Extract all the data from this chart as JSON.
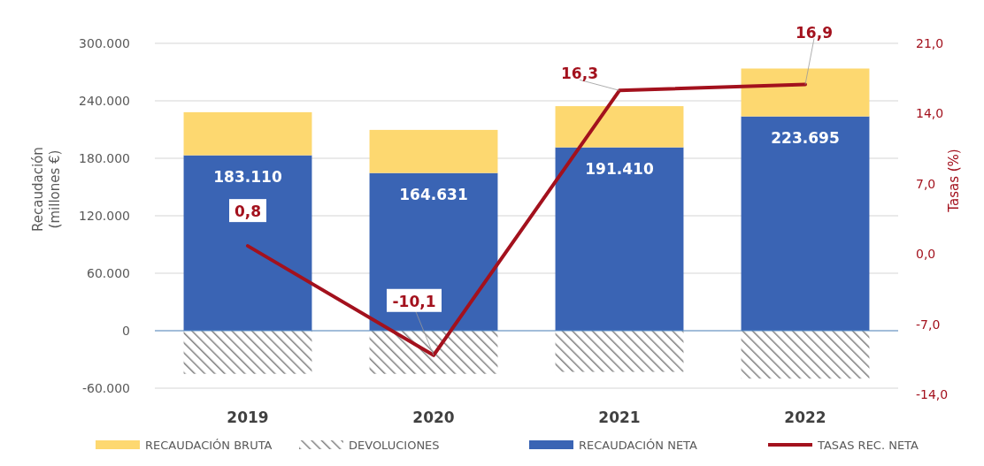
{
  "chart_data": {
    "type": "bar",
    "stacked": true,
    "categories": [
      "2019",
      "2020",
      "2021",
      "2022"
    ],
    "ylabel": "Recaudación\n(millones €)",
    "y2label": "Tasas (%)",
    "ylim": [
      -60000,
      300000
    ],
    "yticks": [
      {
        "value": -60000,
        "label": "-60.000"
      },
      {
        "value": 0,
        "label": "0"
      },
      {
        "value": 60000,
        "label": "60.000"
      },
      {
        "value": 120000,
        "label": "120.000"
      },
      {
        "value": 180000,
        "label": "180.000"
      },
      {
        "value": 240000,
        "label": "240.000"
      },
      {
        "value": 300000,
        "label": "300.000"
      }
    ],
    "y2lim": [
      -14,
      21
    ],
    "y2ticks": [
      {
        "value": -14,
        "label": "-14,0"
      },
      {
        "value": -7,
        "label": "-7,0"
      },
      {
        "value": 0,
        "label": "0,0"
      },
      {
        "value": 7,
        "label": "7,0"
      },
      {
        "value": 14,
        "label": "14,0"
      },
      {
        "value": 21,
        "label": "21,0"
      }
    ],
    "grid": "y",
    "legend": "bottom",
    "ref_lines": [
      {
        "axis": "y",
        "value": 0,
        "color": "#5b8fc7"
      }
    ],
    "series": [
      {
        "name": "RECAUDACIÓN NETA",
        "color": "#3a64b4",
        "values": [
          183110,
          164631,
          191410,
          223695
        ],
        "value_labels": [
          "183.110",
          "164.631",
          "191.410",
          "223.695"
        ]
      },
      {
        "name": "DEVOLUCIONES",
        "color": "#808080",
        "values": [
          -45000,
          -45000,
          -43000,
          -50000
        ]
      },
      {
        "name": "RECAUDACIÓN BRUTA",
        "color": "#fdd870",
        "values": [
          45000,
          45000,
          43000,
          50000
        ]
      },
      {
        "name": "TASAS REC. NETA",
        "type": "line",
        "axis": "y2",
        "color": "#a3111d",
        "values": [
          0.8,
          -10.1,
          16.3,
          16.9
        ],
        "value_labels": [
          "0,8",
          "-10,1",
          "16,3",
          "16,9"
        ]
      }
    ]
  }
}
